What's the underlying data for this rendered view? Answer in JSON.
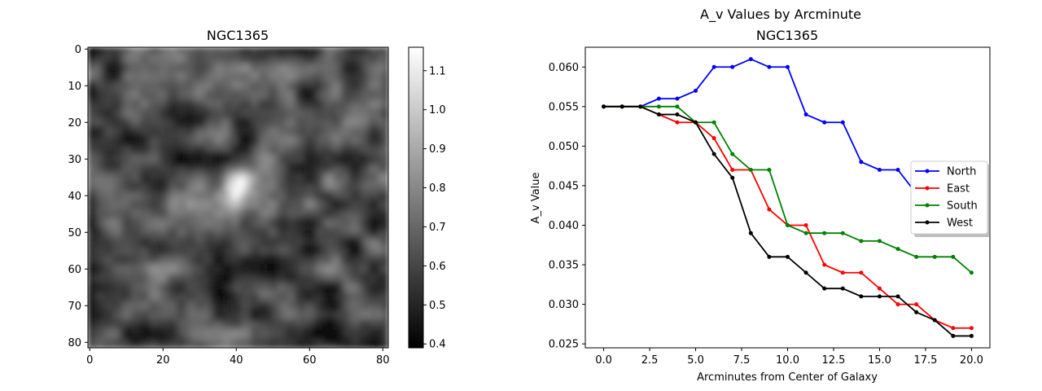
{
  "chart_data": [
    {
      "type": "heatmap",
      "title": "NGC1365",
      "colormap": "gray",
      "xlim": [
        0,
        81
      ],
      "ylim": [
        81,
        0
      ],
      "xticks": [
        "0",
        "20",
        "40",
        "60",
        "80"
      ],
      "yticks": [
        "0",
        "10",
        "20",
        "30",
        "40",
        "50",
        "60",
        "70",
        "80"
      ],
      "colorbar": {
        "range": [
          0.39,
          1.16
        ],
        "ticks": [
          "0.4",
          "0.5",
          "0.6",
          "0.7",
          "0.8",
          "0.9",
          "1.0",
          "1.1"
        ]
      },
      "bright_source": {
        "x": 40,
        "y": 39,
        "value": 1.12
      },
      "background_level": 0.62
    },
    {
      "type": "line",
      "suptitle": "A_v Values by Arcminute",
      "title": "NGC1365",
      "xlabel": "Arcminutes from Center of Galaxy",
      "ylabel": "A_v Value",
      "xlim": [
        -1,
        21
      ],
      "ylim": [
        0.0245,
        0.0625
      ],
      "xticks": [
        "0.0",
        "2.5",
        "5.0",
        "7.5",
        "10.0",
        "12.5",
        "15.0",
        "17.5",
        "20.0"
      ],
      "yticks": [
        "0.025",
        "0.030",
        "0.035",
        "0.040",
        "0.045",
        "0.050",
        "0.055",
        "0.060"
      ],
      "legend_position": "center-right",
      "x": [
        0,
        1,
        2,
        3,
        4,
        5,
        6,
        7,
        8,
        9,
        10,
        11,
        12,
        13,
        14,
        15,
        16,
        17,
        18,
        19,
        20
      ],
      "series": [
        {
          "name": "North",
          "color": "#0000ff",
          "values": [
            0.055,
            0.055,
            0.055,
            0.056,
            0.056,
            0.057,
            0.06,
            0.06,
            0.061,
            0.06,
            0.06,
            0.054,
            0.053,
            0.053,
            0.048,
            0.047,
            0.047,
            0.044,
            0.044,
            0.043,
            0.043
          ]
        },
        {
          "name": "East",
          "color": "#ff0000",
          "values": [
            0.055,
            0.055,
            0.055,
            0.054,
            0.053,
            0.053,
            0.051,
            0.047,
            0.047,
            0.042,
            0.04,
            0.04,
            0.035,
            0.034,
            0.034,
            0.032,
            0.03,
            0.03,
            0.028,
            0.027,
            0.027
          ]
        },
        {
          "name": "South",
          "color": "#008000",
          "values": [
            0.055,
            0.055,
            0.055,
            0.055,
            0.055,
            0.053,
            0.053,
            0.049,
            0.047,
            0.047,
            0.04,
            0.039,
            0.039,
            0.039,
            0.038,
            0.038,
            0.037,
            0.036,
            0.036,
            0.036,
            0.034
          ]
        },
        {
          "name": "West",
          "color": "#000000",
          "values": [
            0.055,
            0.055,
            0.055,
            0.054,
            0.054,
            0.053,
            0.049,
            0.046,
            0.039,
            0.036,
            0.036,
            0.034,
            0.032,
            0.032,
            0.031,
            0.031,
            0.031,
            0.029,
            0.028,
            0.026,
            0.026
          ]
        }
      ]
    }
  ]
}
